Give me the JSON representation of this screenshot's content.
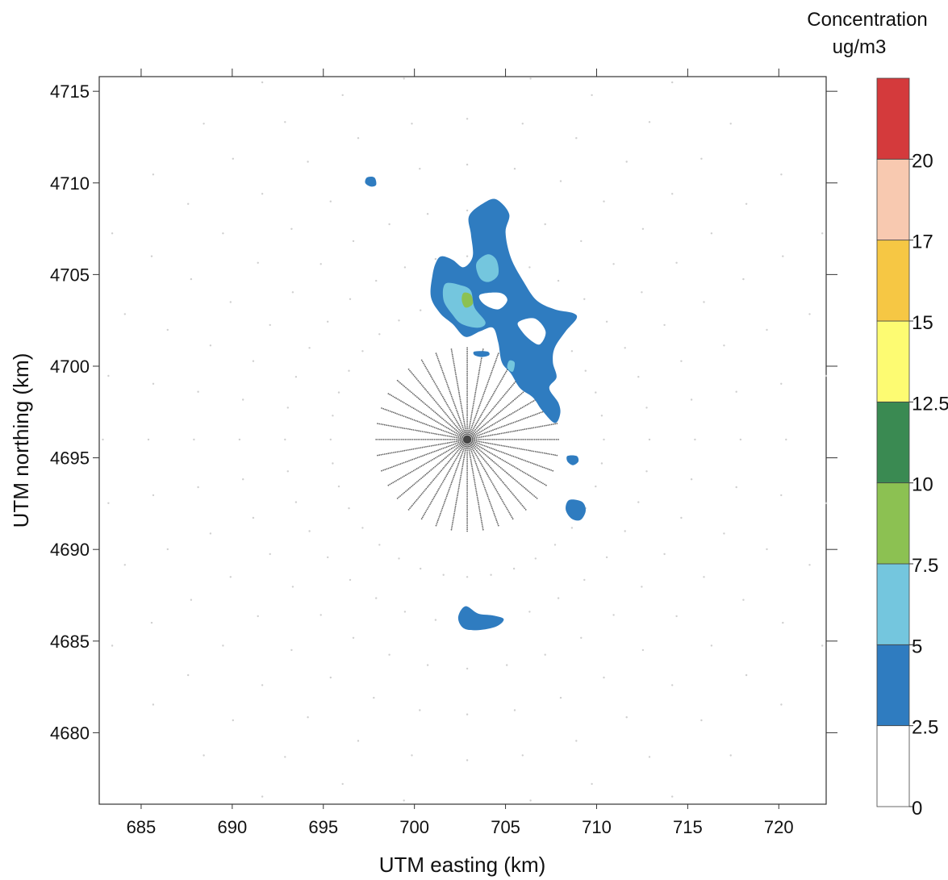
{
  "chart_data": {
    "type": "contour",
    "xlabel": "UTM easting (km)",
    "ylabel": "UTM northing (km)",
    "xlim": [
      682.7,
      722.6
    ],
    "ylim": [
      4676.1,
      4715.8
    ],
    "xticks": [
      685,
      690,
      695,
      700,
      705,
      710,
      715,
      720
    ],
    "yticks": [
      4680,
      4685,
      4690,
      4695,
      4700,
      4705,
      4710,
      4715
    ],
    "colorbar": {
      "title": "Concentration",
      "units": "ug/m3",
      "levels": [
        0,
        2.5,
        5,
        7.5,
        10,
        12.5,
        15,
        17,
        20
      ],
      "colors": [
        "#ffffff",
        "#2f7cc0",
        "#74c6de",
        "#8cc152",
        "#3a8a52",
        "#fdfb72",
        "#f6c744",
        "#f8c9b0",
        "#d43a3c"
      ]
    },
    "source_location": [
      702.9,
      4696.0
    ],
    "contours": [
      {
        "level": "2.5-5",
        "color": "#2f7cc0",
        "points": [
          [
            701.0,
            4705.0
          ],
          [
            700.9,
            4703.8
          ],
          [
            701.4,
            4702.9
          ],
          [
            702.1,
            4702.3
          ],
          [
            702.8,
            4701.6
          ],
          [
            703.6,
            4701.9
          ],
          [
            704.3,
            4702.1
          ],
          [
            704.6,
            4701.3
          ],
          [
            704.8,
            4700.2
          ],
          [
            705.3,
            4699.6
          ],
          [
            705.8,
            4698.8
          ],
          [
            706.5,
            4698.3
          ],
          [
            707.0,
            4697.6
          ],
          [
            707.7,
            4696.9
          ],
          [
            708.0,
            4697.4
          ],
          [
            707.9,
            4698.0
          ],
          [
            707.4,
            4698.8
          ],
          [
            707.8,
            4699.4
          ],
          [
            707.6,
            4700.2
          ],
          [
            707.7,
            4701.0
          ],
          [
            708.3,
            4701.9
          ],
          [
            708.9,
            4702.6
          ],
          [
            708.7,
            4702.9
          ],
          [
            707.7,
            4703.1
          ],
          [
            706.7,
            4703.6
          ],
          [
            706.0,
            4704.6
          ],
          [
            705.3,
            4705.9
          ],
          [
            705.0,
            4707.3
          ],
          [
            705.2,
            4708.3
          ],
          [
            704.5,
            4709.1
          ],
          [
            703.8,
            4708.9
          ],
          [
            703.0,
            4708.2
          ],
          [
            703.1,
            4707.2
          ],
          [
            703.2,
            4706.0
          ],
          [
            702.7,
            4705.4
          ],
          [
            702.1,
            4705.8
          ],
          [
            701.5,
            4706.0
          ],
          [
            701.2,
            4705.7
          ]
        ]
      },
      {
        "level": "2.5-5",
        "color": "#2f7cc0",
        "points": [
          [
            702.8,
            4686.9
          ],
          [
            703.5,
            4686.5
          ],
          [
            704.3,
            4686.4
          ],
          [
            704.9,
            4686.2
          ],
          [
            704.5,
            4685.8
          ],
          [
            703.5,
            4685.6
          ],
          [
            702.7,
            4685.7
          ],
          [
            702.4,
            4686.3
          ]
        ]
      },
      {
        "level": "2.5-5",
        "color": "#2f7cc0",
        "points": [
          [
            708.5,
            4692.7
          ],
          [
            709.2,
            4692.6
          ],
          [
            709.4,
            4692.1
          ],
          [
            709.1,
            4691.6
          ],
          [
            708.6,
            4691.7
          ],
          [
            708.3,
            4692.2
          ]
        ]
      },
      {
        "level": "2.5-5",
        "color": "#2f7cc0",
        "points": [
          [
            697.4,
            4710.3
          ],
          [
            697.8,
            4710.3
          ],
          [
            697.9,
            4709.9
          ],
          [
            697.6,
            4709.8
          ],
          [
            697.3,
            4710.0
          ]
        ]
      },
      {
        "level": "2.5-5",
        "color": "#2f7cc0",
        "points": [
          [
            708.4,
            4695.1
          ],
          [
            708.9,
            4695.1
          ],
          [
            709.0,
            4694.8
          ],
          [
            708.7,
            4694.6
          ],
          [
            708.4,
            4694.8
          ]
        ]
      },
      {
        "level": "2.5-5",
        "color": "#2f7cc0",
        "points": [
          [
            703.3,
            4700.8
          ],
          [
            704.0,
            4700.8
          ],
          [
            704.1,
            4700.6
          ],
          [
            703.7,
            4700.5
          ],
          [
            703.3,
            4700.6
          ]
        ]
      },
      {
        "level": "5-7.5",
        "color": "#74c6de",
        "points": [
          [
            701.7,
            4704.5
          ],
          [
            702.6,
            4704.4
          ],
          [
            703.1,
            4704.1
          ],
          [
            703.3,
            4703.2
          ],
          [
            703.9,
            4702.4
          ],
          [
            703.5,
            4702.1
          ],
          [
            702.6,
            4702.3
          ],
          [
            702.1,
            4702.8
          ],
          [
            701.6,
            4703.6
          ]
        ]
      },
      {
        "level": "5-7.5",
        "color": "#74c6de",
        "points": [
          [
            704.0,
            4706.1
          ],
          [
            704.5,
            4705.8
          ],
          [
            704.6,
            4705.0
          ],
          [
            704.1,
            4704.6
          ],
          [
            703.6,
            4704.8
          ],
          [
            703.4,
            4705.6
          ]
        ]
      },
      {
        "level": "5-7.5",
        "color": "#74c6de",
        "points": [
          [
            705.2,
            4700.3
          ],
          [
            705.5,
            4700.2
          ],
          [
            705.4,
            4699.7
          ],
          [
            705.1,
            4699.9
          ]
        ]
      },
      {
        "level": "7.5-10",
        "color": "#8cc152",
        "points": [
          [
            702.7,
            4704.0
          ],
          [
            703.1,
            4703.9
          ],
          [
            703.2,
            4703.4
          ],
          [
            702.8,
            4703.2
          ],
          [
            702.6,
            4703.6
          ]
        ]
      }
    ],
    "holes": [
      {
        "points": [
          [
            703.6,
            4703.9
          ],
          [
            704.7,
            4704.0
          ],
          [
            705.1,
            4703.6
          ],
          [
            704.6,
            4703.1
          ],
          [
            703.8,
            4703.4
          ]
        ]
      },
      {
        "points": [
          [
            705.7,
            4702.4
          ],
          [
            706.6,
            4702.6
          ],
          [
            707.2,
            4701.9
          ],
          [
            706.9,
            4701.2
          ],
          [
            706.4,
            4701.4
          ],
          [
            705.9,
            4701.9
          ]
        ]
      }
    ]
  }
}
